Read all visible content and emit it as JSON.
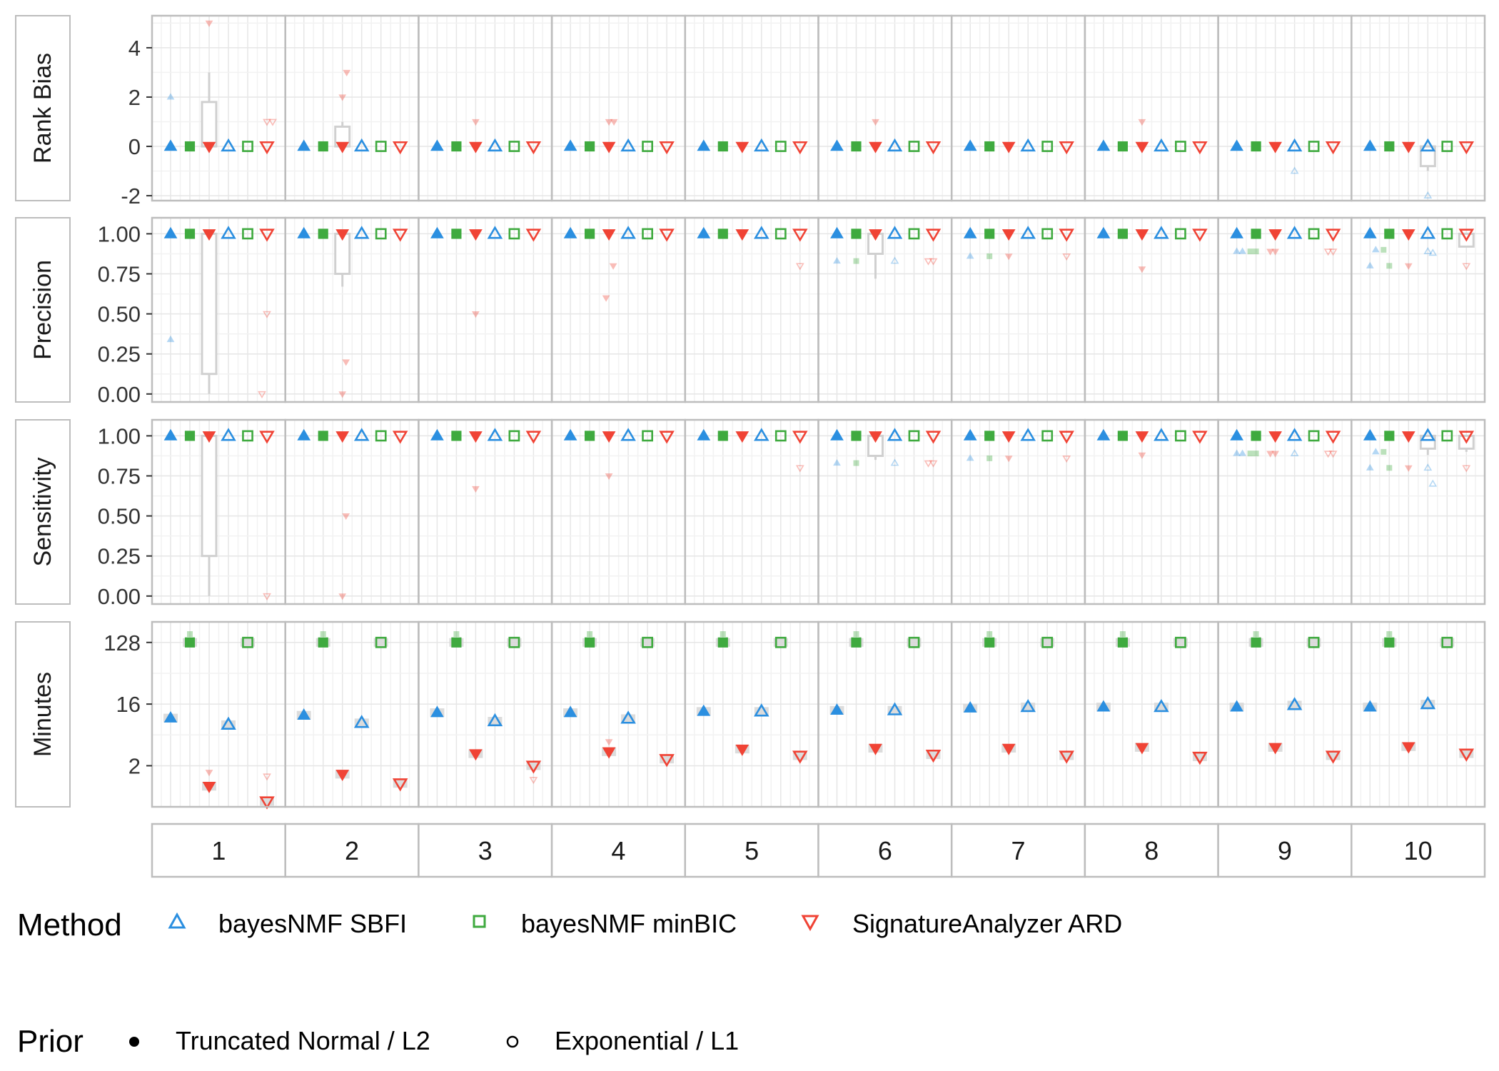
{
  "chart_data": {
    "type": "scatter",
    "facet_columns": [
      "1",
      "2",
      "3",
      "4",
      "5",
      "6",
      "7",
      "8",
      "9",
      "10"
    ],
    "colors": {
      "bayesNMF SBFI": "#2B8FE0",
      "bayesNMF minBIC": "#3FAA3F",
      "SignatureAnalyzer ARD": "#F04335",
      "grid_minor": "#f2f2f2",
      "grid_major": "#e6e6e6",
      "panel_border": "#bdbdbd",
      "box": "#d0d0d0",
      "text": "#333333"
    },
    "legend": {
      "position": "bottom",
      "method_title": "Method",
      "methods": [
        {
          "label": "bayesNMF SBFI",
          "shape": "triangle-up",
          "color": "#2B8FE0"
        },
        {
          "label": "bayesNMF minBIC",
          "shape": "square",
          "color": "#3FAA3F"
        },
        {
          "label": "SignatureAnalyzer ARD",
          "shape": "triangle-down",
          "color": "#F04335"
        }
      ],
      "prior_title": "Prior",
      "priors": [
        {
          "label": "Truncated Normal / L2",
          "filled": true
        },
        {
          "label": "Exponential / L1",
          "filled": false
        }
      ]
    },
    "panels": [
      {
        "id": "rank_bias",
        "label": "Rank Bias",
        "scale": "linear",
        "ylim": [
          -2.2,
          5.3
        ],
        "ticks": [
          4,
          2,
          0,
          -2
        ],
        "tick_labels": [
          "4",
          "2",
          "0",
          "-2"
        ],
        "grid_minor": [
          -1,
          1,
          3,
          5
        ],
        "medians": [
          [
            0,
            0,
            0,
            0,
            0,
            0
          ],
          [
            0,
            0,
            0,
            0,
            0,
            0
          ],
          [
            0,
            0,
            0,
            0,
            0,
            0
          ],
          [
            0,
            0,
            0,
            0,
            0,
            0
          ],
          [
            0,
            0,
            0,
            0,
            0,
            0
          ],
          [
            0,
            0,
            0,
            0,
            0,
            0
          ],
          [
            0,
            0,
            0,
            0,
            0,
            0
          ],
          [
            0,
            0,
            0,
            0,
            0,
            0
          ],
          [
            0,
            0,
            0,
            0,
            0,
            0
          ],
          [
            0,
            0,
            0,
            0,
            0,
            0
          ]
        ],
        "outliers": [
          {
            "facet": 1,
            "slot": 0,
            "y": 2
          },
          {
            "facet": 1,
            "slot": 2,
            "y": 5
          },
          {
            "facet": 1,
            "slot": 5,
            "y": 1
          },
          {
            "facet": 1,
            "slot": 5,
            "y": 1,
            "dx": 8
          },
          {
            "facet": 2,
            "slot": 2,
            "y": 2
          },
          {
            "facet": 2,
            "slot": 2,
            "y": 3,
            "dx": 6
          },
          {
            "facet": 3,
            "slot": 2,
            "y": 1
          },
          {
            "facet": 4,
            "slot": 2,
            "y": 1
          },
          {
            "facet": 4,
            "slot": 2,
            "y": 1,
            "dx": 7
          },
          {
            "facet": 6,
            "slot": 2,
            "y": 1
          },
          {
            "facet": 8,
            "slot": 2,
            "y": 1
          },
          {
            "facet": 9,
            "slot": 3,
            "y": -1
          },
          {
            "facet": 10,
            "slot": 3,
            "y": -2
          }
        ],
        "boxes": [
          {
            "facet": 1,
            "slot": 2,
            "q1": 0,
            "q3": 1.8,
            "lo": 0,
            "hi": 3
          },
          {
            "facet": 2,
            "slot": 2,
            "q1": 0,
            "q3": 0.8,
            "lo": 0,
            "hi": 1
          },
          {
            "facet": 10,
            "slot": 3,
            "q1": -0.8,
            "q3": 0,
            "lo": -1,
            "hi": 0
          }
        ]
      },
      {
        "id": "precision",
        "label": "Precision",
        "scale": "linear",
        "ylim": [
          -0.05,
          1.1
        ],
        "ticks": [
          1.0,
          0.75,
          0.5,
          0.25,
          0.0
        ],
        "tick_labels": [
          "1.00",
          "0.75",
          "0.50",
          "0.25",
          "0.00"
        ],
        "grid_minor": [
          0.125,
          0.375,
          0.625,
          0.875
        ],
        "medians": [
          [
            1,
            1,
            1,
            1,
            1,
            1
          ],
          [
            1,
            1,
            1,
            1,
            1,
            1
          ],
          [
            1,
            1,
            1,
            1,
            1,
            1
          ],
          [
            1,
            1,
            1,
            1,
            1,
            1
          ],
          [
            1,
            1,
            1,
            1,
            1,
            1
          ],
          [
            1,
            1,
            1,
            1,
            1,
            1
          ],
          [
            1,
            1,
            1,
            1,
            1,
            1
          ],
          [
            1,
            1,
            1,
            1,
            1,
            1
          ],
          [
            1,
            1,
            1,
            1,
            1,
            1
          ],
          [
            1,
            1,
            1,
            1,
            1,
            1
          ]
        ],
        "outliers": [
          {
            "facet": 1,
            "slot": 0,
            "y": 0.34
          },
          {
            "facet": 1,
            "slot": 5,
            "y": 0.5
          },
          {
            "facet": 1,
            "slot": 5,
            "y": 0.0,
            "dx": -7
          },
          {
            "facet": 2,
            "slot": 2,
            "y": 0.2,
            "dx": 5
          },
          {
            "facet": 2,
            "slot": 2,
            "y": 0.0
          },
          {
            "facet": 3,
            "slot": 2,
            "y": 0.5
          },
          {
            "facet": 4,
            "slot": 2,
            "y": 0.8,
            "dx": 6
          },
          {
            "facet": 4,
            "slot": 2,
            "y": 0.6,
            "dx": -4
          },
          {
            "facet": 5,
            "slot": 5,
            "y": 0.8
          },
          {
            "facet": 6,
            "slot": 0,
            "y": 0.83
          },
          {
            "facet": 6,
            "slot": 1,
            "y": 0.83
          },
          {
            "facet": 6,
            "slot": 3,
            "y": 0.83
          },
          {
            "facet": 6,
            "slot": 5,
            "y": 0.83
          },
          {
            "facet": 6,
            "slot": 5,
            "y": 0.83,
            "dx": -7
          },
          {
            "facet": 7,
            "slot": 0,
            "y": 0.86
          },
          {
            "facet": 7,
            "slot": 1,
            "y": 0.86
          },
          {
            "facet": 7,
            "slot": 2,
            "y": 0.86
          },
          {
            "facet": 7,
            "slot": 5,
            "y": 0.86
          },
          {
            "facet": 8,
            "slot": 2,
            "y": 0.78
          },
          {
            "facet": 9,
            "slot": 0,
            "y": 0.89
          },
          {
            "facet": 9,
            "slot": 0,
            "y": 0.89,
            "dx": 8
          },
          {
            "facet": 9,
            "slot": 1,
            "y": 0.89
          },
          {
            "facet": 9,
            "slot": 1,
            "y": 0.89,
            "dx": -8
          },
          {
            "facet": 9,
            "slot": 2,
            "y": 0.89
          },
          {
            "facet": 9,
            "slot": 2,
            "y": 0.89,
            "dx": -7
          },
          {
            "facet": 9,
            "slot": 5,
            "y": 0.89
          },
          {
            "facet": 9,
            "slot": 5,
            "y": 0.89,
            "dx": -7
          },
          {
            "facet": 10,
            "slot": 0,
            "y": 0.8
          },
          {
            "facet": 10,
            "slot": 0,
            "y": 0.9,
            "dx": 8
          },
          {
            "facet": 10,
            "slot": 1,
            "y": 0.8
          },
          {
            "facet": 10,
            "slot": 1,
            "y": 0.9,
            "dx": -8
          },
          {
            "facet": 10,
            "slot": 2,
            "y": 0.8
          },
          {
            "facet": 10,
            "slot": 3,
            "y": 0.89
          },
          {
            "facet": 10,
            "slot": 3,
            "y": 0.88,
            "dx": 7
          },
          {
            "facet": 10,
            "slot": 5,
            "y": 0.8
          }
        ],
        "boxes": [
          {
            "facet": 1,
            "slot": 2,
            "q1": 0.125,
            "q3": 1.0,
            "lo": 0.0,
            "hi": 1.0
          },
          {
            "facet": 2,
            "slot": 2,
            "q1": 0.75,
            "q3": 1.0,
            "lo": 0.67,
            "hi": 1.0
          },
          {
            "facet": 6,
            "slot": 2,
            "q1": 0.875,
            "q3": 1.0,
            "lo": 0.72,
            "hi": 1.0
          },
          {
            "facet": 10,
            "slot": 5,
            "q1": 0.92,
            "q3": 1.0,
            "lo": 0.92,
            "hi": 1.0
          }
        ]
      },
      {
        "id": "sensitivity",
        "label": "Sensitivity",
        "scale": "linear",
        "ylim": [
          -0.05,
          1.1
        ],
        "ticks": [
          1.0,
          0.75,
          0.5,
          0.25,
          0.0
        ],
        "tick_labels": [
          "1.00",
          "0.75",
          "0.50",
          "0.25",
          "0.00"
        ],
        "grid_minor": [
          0.125,
          0.375,
          0.625,
          0.875
        ],
        "medians": [
          [
            1,
            1,
            1,
            1,
            1,
            1
          ],
          [
            1,
            1,
            1,
            1,
            1,
            1
          ],
          [
            1,
            1,
            1,
            1,
            1,
            1
          ],
          [
            1,
            1,
            1,
            1,
            1,
            1
          ],
          [
            1,
            1,
            1,
            1,
            1,
            1
          ],
          [
            1,
            1,
            1,
            1,
            1,
            1
          ],
          [
            1,
            1,
            1,
            1,
            1,
            1
          ],
          [
            1,
            1,
            1,
            1,
            1,
            1
          ],
          [
            1,
            1,
            1,
            1,
            1,
            1
          ],
          [
            1,
            1,
            1,
            1,
            1,
            1
          ]
        ],
        "outliers": [
          {
            "facet": 1,
            "slot": 5,
            "y": 0.0
          },
          {
            "facet": 2,
            "slot": 2,
            "y": 0.5,
            "dx": 5
          },
          {
            "facet": 2,
            "slot": 2,
            "y": 0.0
          },
          {
            "facet": 3,
            "slot": 2,
            "y": 0.67
          },
          {
            "facet": 4,
            "slot": 2,
            "y": 0.75
          },
          {
            "facet": 5,
            "slot": 5,
            "y": 0.8
          },
          {
            "facet": 6,
            "slot": 0,
            "y": 0.83
          },
          {
            "facet": 6,
            "slot": 1,
            "y": 0.83
          },
          {
            "facet": 6,
            "slot": 3,
            "y": 0.83
          },
          {
            "facet": 6,
            "slot": 5,
            "y": 0.83
          },
          {
            "facet": 6,
            "slot": 5,
            "y": 0.83,
            "dx": -7
          },
          {
            "facet": 7,
            "slot": 0,
            "y": 0.86
          },
          {
            "facet": 7,
            "slot": 1,
            "y": 0.86
          },
          {
            "facet": 7,
            "slot": 2,
            "y": 0.86
          },
          {
            "facet": 7,
            "slot": 5,
            "y": 0.86
          },
          {
            "facet": 8,
            "slot": 2,
            "y": 0.88
          },
          {
            "facet": 9,
            "slot": 0,
            "y": 0.89
          },
          {
            "facet": 9,
            "slot": 0,
            "y": 0.89,
            "dx": 8
          },
          {
            "facet": 9,
            "slot": 1,
            "y": 0.89
          },
          {
            "facet": 9,
            "slot": 1,
            "y": 0.89,
            "dx": -8
          },
          {
            "facet": 9,
            "slot": 2,
            "y": 0.89
          },
          {
            "facet": 9,
            "slot": 2,
            "y": 0.89,
            "dx": -7
          },
          {
            "facet": 9,
            "slot": 3,
            "y": 0.89
          },
          {
            "facet": 9,
            "slot": 5,
            "y": 0.89
          },
          {
            "facet": 9,
            "slot": 5,
            "y": 0.89,
            "dx": -7
          },
          {
            "facet": 10,
            "slot": 0,
            "y": 0.8
          },
          {
            "facet": 10,
            "slot": 0,
            "y": 0.9,
            "dx": 8
          },
          {
            "facet": 10,
            "slot": 1,
            "y": 0.8
          },
          {
            "facet": 10,
            "slot": 1,
            "y": 0.9,
            "dx": -8
          },
          {
            "facet": 10,
            "slot": 2,
            "y": 0.8
          },
          {
            "facet": 10,
            "slot": 3,
            "y": 0.8
          },
          {
            "facet": 10,
            "slot": 3,
            "y": 0.7,
            "dx": 7
          },
          {
            "facet": 10,
            "slot": 5,
            "y": 0.8
          }
        ],
        "boxes": [
          {
            "facet": 1,
            "slot": 2,
            "q1": 0.25,
            "q3": 1.0,
            "lo": 0.0,
            "hi": 1.0
          },
          {
            "facet": 6,
            "slot": 2,
            "q1": 0.875,
            "q3": 1.0,
            "lo": 0.85,
            "hi": 1.0
          },
          {
            "facet": 10,
            "slot": 3,
            "q1": 0.92,
            "q3": 1.0,
            "lo": 0.88,
            "hi": 1.0
          },
          {
            "facet": 10,
            "slot": 5,
            "q1": 0.92,
            "q3": 1.0,
            "lo": 0.9,
            "hi": 1.0
          }
        ]
      },
      {
        "id": "minutes",
        "label": "Minutes",
        "scale": "log2",
        "ylim": [
          0.5,
          256
        ],
        "ticks": [
          128,
          16,
          2
        ],
        "tick_labels": [
          "128",
          "16",
          "2"
        ],
        "grid_minor": [
          5.657,
          45.25
        ],
        "medians": [
          [
            10,
            128,
            1,
            8,
            128,
            0.6
          ],
          [
            11,
            128,
            1.5,
            8.5,
            128,
            1.1
          ],
          [
            12,
            128,
            3,
            9,
            128,
            2
          ],
          [
            12,
            128,
            3.2,
            9.8,
            128,
            2.5
          ],
          [
            12.5,
            128,
            3.5,
            12.5,
            128,
            2.8
          ],
          [
            13,
            128,
            3.6,
            13,
            128,
            2.9
          ],
          [
            14,
            128,
            3.6,
            14.5,
            128,
            2.8
          ],
          [
            14.5,
            128,
            3.7,
            14.5,
            128,
            2.7
          ],
          [
            14.5,
            128,
            3.7,
            15.5,
            128,
            2.8
          ],
          [
            14.5,
            128,
            3.8,
            16,
            128,
            3
          ]
        ],
        "outliers": [
          {
            "facet": 1,
            "slot": 1,
            "y": 170
          },
          {
            "facet": 1,
            "slot": 2,
            "y": 1.6
          },
          {
            "facet": 1,
            "slot": 5,
            "y": 1.4
          },
          {
            "facet": 2,
            "slot": 1,
            "y": 170
          },
          {
            "facet": 3,
            "slot": 1,
            "y": 170
          },
          {
            "facet": 3,
            "slot": 5,
            "y": 1.25
          },
          {
            "facet": 4,
            "slot": 1,
            "y": 170
          },
          {
            "facet": 4,
            "slot": 2,
            "y": 4.5
          },
          {
            "facet": 5,
            "slot": 1,
            "y": 170
          },
          {
            "facet": 6,
            "slot": 1,
            "y": 170
          },
          {
            "facet": 7,
            "slot": 1,
            "y": 170
          },
          {
            "facet": 8,
            "slot": 1,
            "y": 170
          },
          {
            "facet": 9,
            "slot": 1,
            "y": 170
          },
          {
            "facet": 10,
            "slot": 1,
            "y": 170
          }
        ],
        "boxes": []
      }
    ]
  }
}
